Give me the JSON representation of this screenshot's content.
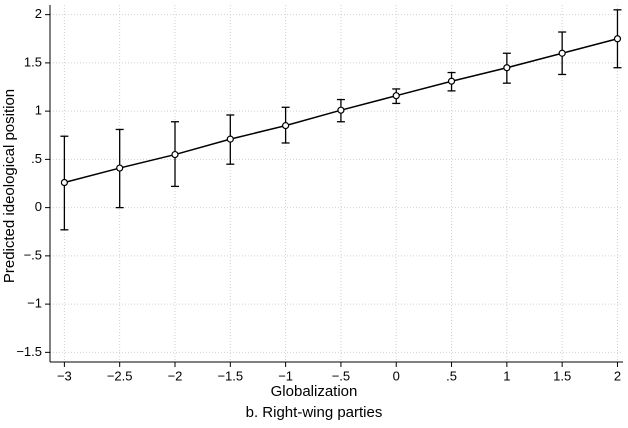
{
  "chart_data": {
    "type": "line",
    "x_label": "Globalization",
    "y_label": "Predicted ideological position",
    "caption": "b. Right-wing parties",
    "x": [
      -3,
      -2.5,
      -2,
      -1.5,
      -1,
      -0.5,
      0,
      0.5,
      1,
      1.5,
      2
    ],
    "values": [
      0.26,
      0.41,
      0.55,
      0.71,
      0.85,
      1.01,
      1.16,
      1.31,
      1.45,
      1.6,
      1.75
    ],
    "ci_lower": [
      -0.23,
      0.0,
      0.22,
      0.45,
      0.67,
      0.89,
      1.08,
      1.21,
      1.29,
      1.38,
      1.45
    ],
    "ci_upper": [
      0.74,
      0.81,
      0.89,
      0.96,
      1.04,
      1.12,
      1.23,
      1.4,
      1.6,
      1.82,
      2.05
    ],
    "color": "#000000",
    "xlim": [
      -3.13,
      2.05
    ],
    "ylim": [
      -1.6,
      2.1
    ],
    "xticks": [
      {
        "value": -3,
        "label": "−3"
      },
      {
        "value": -2.5,
        "label": "−2.5"
      },
      {
        "value": -2,
        "label": "−2"
      },
      {
        "value": -1.5,
        "label": "−1.5"
      },
      {
        "value": -1,
        "label": "−1"
      },
      {
        "value": -0.5,
        "label": "−.5"
      },
      0,
      {
        "value": 0.5,
        "label": ".5"
      },
      1,
      1.5,
      2
    ],
    "yticks": [
      {
        "value": -1.5,
        "label": "−1.5"
      },
      {
        "value": -1,
        "label": "−1"
      },
      {
        "value": -0.5,
        "label": "−.5"
      },
      0,
      {
        "value": 0.5,
        "label": ".5"
      },
      1,
      1.5,
      2
    ],
    "grid": true
  }
}
